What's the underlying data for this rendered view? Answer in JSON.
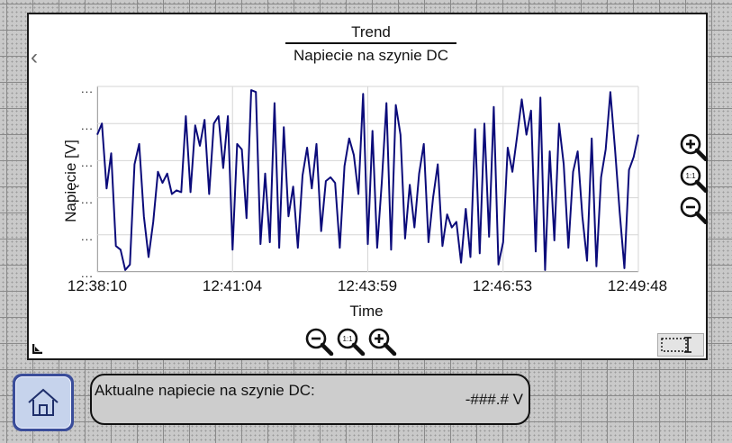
{
  "trend": {
    "title": "Trend",
    "subtitle": "Napiecie na szynie DC"
  },
  "icons": {
    "back": "chevron-left-icon",
    "zoom_in": "zoom-in-icon",
    "zoom_reset": "zoom-1to1-icon",
    "zoom_out": "zoom-out-icon",
    "corner": "corner-resize-icon",
    "select": "selection-cursor-icon",
    "home": "home-icon"
  },
  "chart_data": {
    "type": "line",
    "title": "",
    "xlabel": "Time",
    "ylabel": "Napięcie [V]",
    "ytick_labels": [
      "...",
      "...",
      "...",
      "...",
      "...",
      "..."
    ],
    "x_tick_labels": [
      "12:38:10",
      "12:41:04",
      "12:43:59",
      "12:46:53",
      "12:49:48"
    ],
    "grid": true,
    "ylim": [
      0,
      1
    ],
    "series": [
      {
        "color": "#0b0b7a",
        "values": [
          0.74,
          0.8,
          0.45,
          0.64,
          0.14,
          0.12,
          0.01,
          0.04,
          0.58,
          0.69,
          0.3,
          0.08,
          0.27,
          0.54,
          0.48,
          0.53,
          0.42,
          0.44,
          0.43,
          0.84,
          0.43,
          0.79,
          0.68,
          0.82,
          0.42,
          0.8,
          0.84,
          0.56,
          0.84,
          0.12,
          0.69,
          0.66,
          0.29,
          0.98,
          0.97,
          0.15,
          0.53,
          0.16,
          0.91,
          0.13,
          0.78,
          0.3,
          0.46,
          0.13,
          0.52,
          0.67,
          0.45,
          0.69,
          0.22,
          0.49,
          0.51,
          0.48,
          0.13,
          0.57,
          0.72,
          0.63,
          0.42,
          0.96,
          0.15,
          0.76,
          0.13,
          0.48,
          0.91,
          0.12,
          0.9,
          0.74,
          0.18,
          0.47,
          0.24,
          0.53,
          0.69,
          0.16,
          0.4,
          0.58,
          0.14,
          0.31,
          0.24,
          0.27,
          0.05,
          0.34,
          0.08,
          0.77,
          0.1,
          0.8,
          0.19,
          0.89,
          0.04,
          0.16,
          0.67,
          0.54,
          0.73,
          0.93,
          0.74,
          0.87,
          0.11,
          0.94,
          0.01,
          0.65,
          0.17,
          0.8,
          0.58,
          0.13,
          0.54,
          0.65,
          0.3,
          0.06,
          0.72,
          0.03,
          0.51,
          0.66,
          0.97,
          0.66,
          0.32,
          0.02,
          0.55,
          0.62,
          0.74
        ]
      }
    ]
  },
  "status": {
    "label": "Aktualne napiecie na szynie DC:",
    "value": "-###.# V"
  },
  "colors": {
    "line": "#0b0b7a",
    "home_button_border": "#3a4d9a",
    "home_button_fill": "#c6d3ec",
    "background": "#c9c9c9"
  }
}
